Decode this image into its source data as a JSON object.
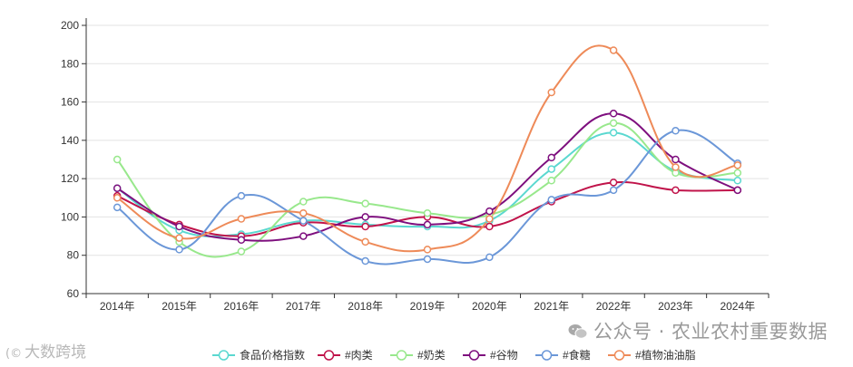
{
  "chart_data": {
    "type": "line",
    "categories": [
      "2014年",
      "2015年",
      "2016年",
      "2017年",
      "2018年",
      "2019年",
      "2020年",
      "2021年",
      "2022年",
      "2023年",
      "2024年"
    ],
    "ylim": [
      60,
      200
    ],
    "yticks": [
      60,
      80,
      100,
      120,
      140,
      160,
      180,
      200
    ],
    "grid": true,
    "smooth": true,
    "legend_position": "bottom",
    "series": [
      {
        "name": "食品价格指数",
        "color": "#5ad8d0",
        "values": [
          115,
          93,
          91,
          98,
          96,
          95,
          98,
          125,
          144,
          124,
          119
        ]
      },
      {
        "name": "#肉类",
        "color": "#c0134a",
        "values": [
          111,
          96,
          90,
          97,
          95,
          100,
          95,
          108,
          118,
          114,
          114
        ]
      },
      {
        "name": "#奶类",
        "color": "#98e88c",
        "values": [
          130,
          87,
          82,
          108,
          107,
          102,
          101,
          119,
          149,
          123,
          123
        ]
      },
      {
        "name": "#谷物",
        "color": "#7e0f7e",
        "values": [
          115,
          95,
          88,
          90,
          100,
          96,
          103,
          131,
          154,
          130,
          114
        ]
      },
      {
        "name": "#食糖",
        "color": "#6b97d8",
        "values": [
          105,
          83,
          111,
          98,
          77,
          78,
          79,
          109,
          114,
          145,
          128
        ]
      },
      {
        "name": "#植物油油脂",
        "color": "#ee8a58",
        "values": [
          110,
          89,
          99,
          102,
          87,
          83,
          99,
          165,
          187,
          126,
          127
        ]
      }
    ]
  },
  "watermark": {
    "main": "公众号 · 农业农村重要数据",
    "corner": "大数跨境",
    "corner_mark": "(©"
  }
}
